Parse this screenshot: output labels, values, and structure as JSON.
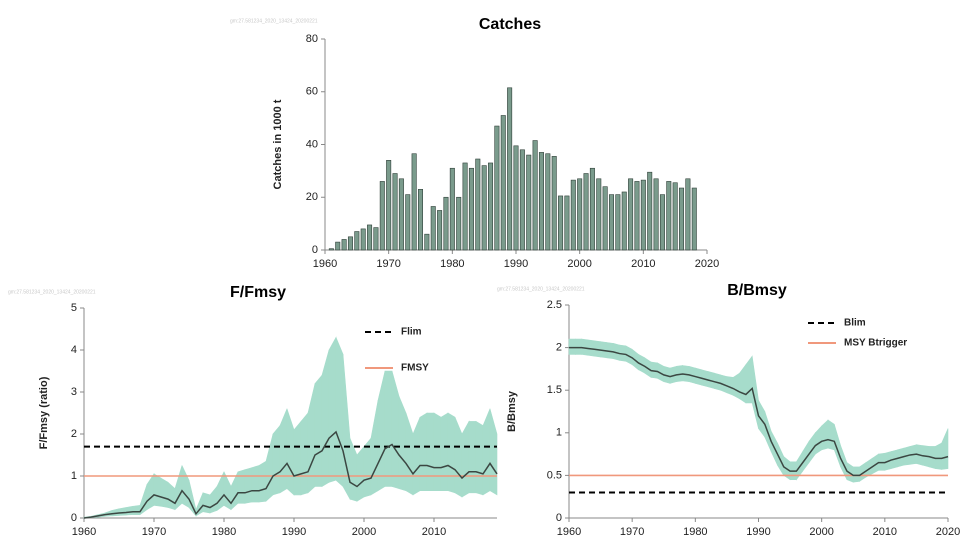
{
  "chart_data": [
    {
      "type": "bar",
      "title": "Catches",
      "watermark": "gm:27.581234_2020_13424_20200221",
      "y_label": "Catches in 1000 t",
      "color": "#7a9b8c",
      "edge_color": "#2f3f38",
      "x": [
        1961,
        1962,
        1963,
        1964,
        1965,
        1966,
        1967,
        1968,
        1969,
        1970,
        1971,
        1972,
        1973,
        1974,
        1975,
        1976,
        1977,
        1978,
        1979,
        1980,
        1981,
        1982,
        1983,
        1984,
        1985,
        1986,
        1987,
        1988,
        1989,
        1990,
        1991,
        1992,
        1993,
        1994,
        1995,
        1996,
        1997,
        1998,
        1999,
        2000,
        2001,
        2002,
        2003,
        2004,
        2005,
        2006,
        2007,
        2008,
        2009,
        2010,
        2011,
        2012,
        2013,
        2014,
        2015,
        2016,
        2017,
        2018
      ],
      "values": [
        0.5,
        3,
        4,
        5,
        7,
        8,
        9.5,
        8.5,
        26,
        34,
        29,
        27,
        21,
        36.5,
        23,
        6,
        16.5,
        15,
        20,
        31,
        20,
        33,
        31,
        34.5,
        32,
        33,
        47,
        51,
        61.5,
        39.5,
        38,
        36,
        41.5,
        37,
        36.5,
        35.5,
        20.5,
        20.5,
        26.5,
        27,
        29,
        31,
        27,
        24,
        21,
        21,
        22,
        27,
        26,
        26.5,
        29.5,
        27,
        21,
        26,
        25.5,
        23.5,
        27,
        23.5
      ],
      "xlim": [
        1960,
        2020
      ],
      "xticks": [
        1960,
        1970,
        1980,
        1990,
        2000,
        2010,
        2020
      ],
      "ylim": [
        0,
        80
      ],
      "yticks": [
        0,
        20,
        40,
        60,
        80
      ]
    },
    {
      "type": "line",
      "title": "F/Fmsy",
      "watermark": "gm:27.581234_2020_13424_20200221",
      "y_label": "F/Fmsy (ratio)",
      "color": "#3b4742",
      "band_color": "#a6dccb",
      "x": [
        1960,
        1961,
        1962,
        1963,
        1964,
        1965,
        1966,
        1967,
        1968,
        1969,
        1970,
        1971,
        1972,
        1973,
        1974,
        1975,
        1976,
        1977,
        1978,
        1979,
        1980,
        1981,
        1982,
        1983,
        1984,
        1985,
        1986,
        1987,
        1988,
        1989,
        1990,
        1991,
        1992,
        1993,
        1994,
        1995,
        1996,
        1997,
        1998,
        1999,
        2000,
        2001,
        2002,
        2003,
        2004,
        2005,
        2006,
        2007,
        2008,
        2009,
        2010,
        2011,
        2012,
        2013,
        2014,
        2015,
        2016,
        2017,
        2018,
        2019
      ],
      "values": [
        0,
        0.02,
        0.05,
        0.08,
        0.1,
        0.12,
        0.13,
        0.15,
        0.15,
        0.4,
        0.55,
        0.5,
        0.45,
        0.35,
        0.65,
        0.45,
        0.1,
        0.3,
        0.25,
        0.35,
        0.55,
        0.35,
        0.6,
        0.6,
        0.65,
        0.65,
        0.7,
        1.0,
        1.1,
        1.3,
        1.0,
        1.05,
        1.1,
        1.5,
        1.6,
        1.9,
        2.05,
        1.6,
        0.85,
        0.75,
        0.9,
        0.95,
        1.3,
        1.65,
        1.75,
        1.5,
        1.3,
        1.05,
        1.25,
        1.25,
        1.2,
        1.2,
        1.25,
        1.15,
        0.95,
        1.1,
        1.1,
        1.05,
        1.3,
        1.05
      ],
      "lower": [
        0,
        0.01,
        0.02,
        0.04,
        0.05,
        0.06,
        0.07,
        0.08,
        0.08,
        0.2,
        0.3,
        0.28,
        0.25,
        0.2,
        0.35,
        0.25,
        0.05,
        0.15,
        0.12,
        0.18,
        0.3,
        0.2,
        0.35,
        0.35,
        0.38,
        0.38,
        0.4,
        0.55,
        0.6,
        0.7,
        0.55,
        0.55,
        0.6,
        0.75,
        0.75,
        0.85,
        0.9,
        0.75,
        0.45,
        0.4,
        0.5,
        0.55,
        0.65,
        0.75,
        0.75,
        0.7,
        0.65,
        0.55,
        0.65,
        0.65,
        0.65,
        0.65,
        0.65,
        0.6,
        0.5,
        0.6,
        0.6,
        0.55,
        0.65,
        0.55
      ],
      "upper": [
        0.02,
        0.04,
        0.08,
        0.12,
        0.18,
        0.22,
        0.25,
        0.28,
        0.3,
        0.8,
        1.05,
        0.95,
        0.85,
        0.7,
        1.25,
        0.9,
        0.2,
        0.6,
        0.55,
        0.75,
        1.1,
        0.75,
        1.1,
        1.15,
        1.2,
        1.25,
        1.35,
        2.0,
        2.2,
        2.6,
        2.1,
        2.3,
        2.5,
        3.2,
        3.4,
        4.0,
        4.3,
        3.9,
        1.9,
        1.5,
        1.7,
        1.9,
        2.8,
        3.5,
        3.5,
        2.9,
        2.5,
        2.0,
        2.4,
        2.5,
        2.5,
        2.4,
        2.5,
        2.4,
        2.0,
        2.3,
        2.3,
        2.2,
        2.6,
        2.0
      ],
      "reference_lines": [
        {
          "name": "Flim",
          "value": 1.7,
          "color": "#000000",
          "dashed": true
        },
        {
          "name": "FMSY",
          "value": 1,
          "color": "#f0987c",
          "dashed": false
        }
      ],
      "xlim": [
        1960,
        2019
      ],
      "xticks": [
        1960,
        1970,
        1980,
        1990,
        2000,
        2010
      ],
      "ylim": [
        0,
        5
      ],
      "yticks": [
        0,
        1,
        2,
        3,
        4,
        5
      ]
    },
    {
      "type": "line",
      "title": "B/Bmsy",
      "watermark": "gm:27.581234_2020_13424_20200221",
      "y_label": "B/Bmsy",
      "color": "#3b4742",
      "band_color": "#a6dccb",
      "x": [
        1960,
        1961,
        1962,
        1963,
        1964,
        1965,
        1966,
        1967,
        1968,
        1969,
        1970,
        1971,
        1972,
        1973,
        1974,
        1975,
        1976,
        1977,
        1978,
        1979,
        1980,
        1981,
        1982,
        1983,
        1984,
        1985,
        1986,
        1987,
        1988,
        1989,
        1990,
        1991,
        1992,
        1993,
        1994,
        1995,
        1996,
        1997,
        1998,
        1999,
        2000,
        2001,
        2002,
        2003,
        2004,
        2005,
        2006,
        2007,
        2008,
        2009,
        2010,
        2011,
        2012,
        2013,
        2014,
        2015,
        2016,
        2017,
        2018,
        2019,
        2020
      ],
      "values": [
        2.0,
        2.0,
        2.0,
        1.99,
        1.98,
        1.97,
        1.96,
        1.95,
        1.93,
        1.92,
        1.88,
        1.82,
        1.78,
        1.73,
        1.72,
        1.68,
        1.66,
        1.68,
        1.69,
        1.68,
        1.66,
        1.64,
        1.62,
        1.6,
        1.58,
        1.55,
        1.52,
        1.48,
        1.45,
        1.52,
        1.2,
        1.1,
        0.9,
        0.75,
        0.6,
        0.55,
        0.55,
        0.65,
        0.75,
        0.85,
        0.9,
        0.92,
        0.9,
        0.7,
        0.55,
        0.5,
        0.5,
        0.55,
        0.6,
        0.65,
        0.65,
        0.68,
        0.7,
        0.72,
        0.74,
        0.75,
        0.73,
        0.72,
        0.7,
        0.7,
        0.72
      ],
      "lower": [
        1.92,
        1.92,
        1.92,
        1.91,
        1.9,
        1.89,
        1.88,
        1.87,
        1.85,
        1.84,
        1.8,
        1.74,
        1.7,
        1.65,
        1.64,
        1.6,
        1.58,
        1.6,
        1.61,
        1.6,
        1.58,
        1.56,
        1.54,
        1.52,
        1.5,
        1.47,
        1.44,
        1.4,
        1.35,
        1.35,
        1.05,
        0.95,
        0.78,
        0.62,
        0.5,
        0.45,
        0.45,
        0.55,
        0.65,
        0.75,
        0.8,
        0.82,
        0.8,
        0.6,
        0.45,
        0.42,
        0.43,
        0.48,
        0.52,
        0.56,
        0.56,
        0.58,
        0.6,
        0.62,
        0.63,
        0.64,
        0.62,
        0.6,
        0.58,
        0.57,
        0.58
      ],
      "upper": [
        2.1,
        2.1,
        2.1,
        2.09,
        2.08,
        2.07,
        2.06,
        2.05,
        2.03,
        2.02,
        1.98,
        1.92,
        1.88,
        1.83,
        1.82,
        1.78,
        1.76,
        1.78,
        1.79,
        1.78,
        1.76,
        1.74,
        1.72,
        1.7,
        1.68,
        1.66,
        1.65,
        1.7,
        1.8,
        1.9,
        1.38,
        1.25,
        1.02,
        0.88,
        0.72,
        0.66,
        0.66,
        0.78,
        0.9,
        1.0,
        1.08,
        1.15,
        1.1,
        0.85,
        0.65,
        0.6,
        0.6,
        0.65,
        0.7,
        0.75,
        0.76,
        0.78,
        0.8,
        0.82,
        0.84,
        0.86,
        0.85,
        0.84,
        0.84,
        0.88,
        1.05
      ],
      "reference_lines": [
        {
          "name": "Blim",
          "value": 0.3,
          "color": "#000000",
          "dashed": true
        },
        {
          "name": "MSY Btrigger",
          "value": 0.5,
          "color": "#f0987c",
          "dashed": false
        }
      ],
      "xlim": [
        1960,
        2020
      ],
      "xticks": [
        1960,
        1970,
        1980,
        1990,
        2000,
        2010,
        2020
      ],
      "ylim": [
        0,
        2.5
      ],
      "yticks": [
        0,
        0.5,
        1,
        1.5,
        2,
        2.5
      ]
    }
  ]
}
